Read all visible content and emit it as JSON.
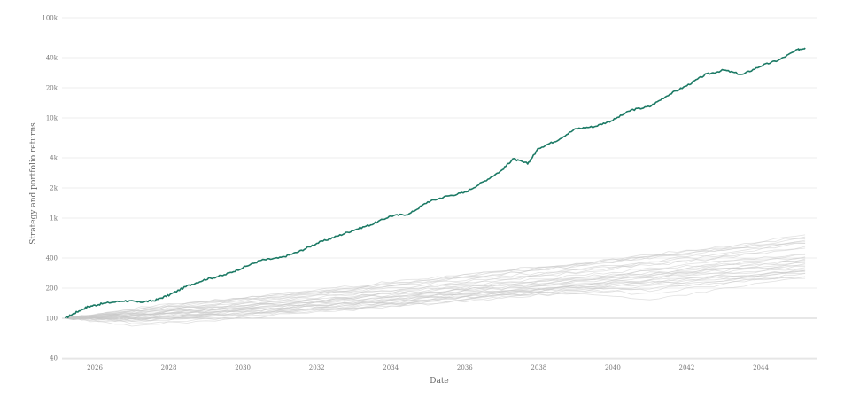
{
  "chart_data": {
    "type": "line",
    "xlabel": "Date",
    "ylabel": "Strategy and portfolio returns",
    "y_scale": "log",
    "ylim": [
      40,
      100000
    ],
    "xlim": [
      "2025-03-01",
      "2045-04-01"
    ],
    "y_ticks": [
      {
        "value": 40,
        "label": "40"
      },
      {
        "value": 100,
        "label": "100"
      },
      {
        "value": 200,
        "label": "200"
      },
      {
        "value": 400,
        "label": "400"
      },
      {
        "value": 1000,
        "label": "1k"
      },
      {
        "value": 2000,
        "label": "2k"
      },
      {
        "value": 4000,
        "label": "4k"
      },
      {
        "value": 10000,
        "label": "10k"
      },
      {
        "value": 20000,
        "label": "20k"
      },
      {
        "value": 40000,
        "label": "40k"
      },
      {
        "value": 100000,
        "label": "100k"
      }
    ],
    "x_ticks": [
      {
        "value": 2026,
        "label": "2026"
      },
      {
        "value": 2028,
        "label": "2028"
      },
      {
        "value": 2030,
        "label": "2030"
      },
      {
        "value": 2032,
        "label": "2032"
      },
      {
        "value": 2034,
        "label": "2034"
      },
      {
        "value": 2036,
        "label": "2036"
      },
      {
        "value": 2038,
        "label": "2038"
      },
      {
        "value": 2040,
        "label": "2040"
      },
      {
        "value": 2042,
        "label": "2042"
      },
      {
        "value": 2044,
        "label": "2044"
      }
    ],
    "grid": true,
    "highlight_color": "#1c7a65",
    "background_color": "#c9c9c9",
    "series": [
      {
        "role": "strategy",
        "x": [
          2025.2,
          2025.5,
          2025.8,
          2026.2,
          2026.8,
          2027.2,
          2027.6,
          2028.0,
          2028.5,
          2029.0,
          2029.5,
          2030.0,
          2030.5,
          2031.0,
          2031.5,
          2032.0,
          2032.5,
          2033.0,
          2033.5,
          2034.0,
          2034.5,
          2035.0,
          2035.5,
          2036.0,
          2036.5,
          2037.0,
          2037.3,
          2037.7,
          2038.0,
          2038.5,
          2039.0,
          2039.5,
          2040.0,
          2040.5,
          2041.0,
          2041.5,
          2042.0,
          2042.5,
          2043.0,
          2043.5,
          2044.0,
          2044.5,
          2045.0,
          2045.2
        ],
        "y": [
          100,
          115,
          130,
          140,
          150,
          145,
          150,
          170,
          210,
          245,
          270,
          320,
          380,
          400,
          460,
          560,
          650,
          760,
          870,
          1050,
          1100,
          1450,
          1650,
          1800,
          2300,
          3000,
          3900,
          3500,
          5000,
          6000,
          7800,
          8200,
          9500,
          12000,
          13000,
          17000,
          21000,
          27000,
          30000,
          27000,
          33000,
          38000,
          48000,
          50000
        ]
      },
      {
        "role": "portfolio",
        "x": [
          2025.2,
          2027,
          2029,
          2031,
          2033,
          2035,
          2037,
          2039,
          2041,
          2043,
          2045.2
        ],
        "y": [
          100,
          108,
          125,
          140,
          165,
          190,
          215,
          255,
          300,
          360,
          430
        ]
      },
      {
        "role": "portfolio",
        "x": [
          2025.2,
          2027,
          2029,
          2031,
          2033,
          2035,
          2037,
          2039,
          2041,
          2043,
          2045.2
        ],
        "y": [
          100,
          100,
          112,
          125,
          140,
          155,
          180,
          205,
          235,
          265,
          300
        ]
      },
      {
        "role": "portfolio",
        "x": [
          2025.2,
          2027,
          2029,
          2031,
          2033,
          2035,
          2037,
          2039,
          2041,
          2043,
          2045.2
        ],
        "y": [
          100,
          118,
          140,
          165,
          195,
          230,
          275,
          330,
          400,
          480,
          620
        ]
      },
      {
        "role": "portfolio",
        "x": [
          2025.2,
          2027,
          2029,
          2031,
          2033,
          2035,
          2037,
          2039,
          2041,
          2043,
          2045.2
        ],
        "y": [
          100,
          95,
          105,
          118,
          130,
          150,
          170,
          185,
          210,
          240,
          260
        ]
      },
      {
        "role": "portfolio",
        "x": [
          2025.2,
          2027,
          2029,
          2031,
          2033,
          2035,
          2037,
          2039,
          2041,
          2043,
          2045.2
        ],
        "y": [
          100,
          112,
          130,
          150,
          175,
          205,
          240,
          285,
          340,
          400,
          520
        ]
      },
      {
        "role": "portfolio",
        "x": [
          2025.2,
          2027,
          2029,
          2031,
          2033,
          2035,
          2037,
          2039,
          2041,
          2043,
          2045.2
        ],
        "y": [
          100,
          105,
          118,
          133,
          150,
          172,
          200,
          235,
          270,
          310,
          370
        ]
      },
      {
        "role": "portfolio",
        "x": [
          2025.2,
          2027,
          2029,
          2031,
          2033,
          2035,
          2037,
          2039,
          2041,
          2043,
          2045.2
        ],
        "y": [
          100,
          90,
          98,
          112,
          125,
          145,
          170,
          190,
          175,
          220,
          280
        ]
      },
      {
        "role": "portfolio",
        "x": [
          2025.2,
          2027,
          2029,
          2031,
          2033,
          2035,
          2037,
          2039,
          2041,
          2043,
          2045.2
        ],
        "y": [
          100,
          125,
          150,
          175,
          210,
          250,
          300,
          350,
          430,
          520,
          680
        ]
      },
      {
        "role": "portfolio",
        "x": [
          2025.2,
          2027,
          2029,
          2031,
          2033,
          2035,
          2037,
          2039,
          2041,
          2043,
          2045.2
        ],
        "y": [
          100,
          103,
          110,
          120,
          138,
          160,
          180,
          210,
          245,
          290,
          340
        ]
      },
      {
        "role": "portfolio",
        "x": [
          2025.2,
          2027,
          2029,
          2031,
          2033,
          2035,
          2037,
          2039,
          2041,
          2043,
          2045.2
        ],
        "y": [
          100,
          110,
          122,
          140,
          160,
          180,
          210,
          240,
          280,
          330,
          400
        ]
      },
      {
        "role": "portfolio",
        "x": [
          2025.2,
          2027,
          2029,
          2031,
          2033,
          2035,
          2037,
          2039,
          2041,
          2043,
          2045.2
        ],
        "y": [
          100,
          98,
          108,
          115,
          128,
          140,
          162,
          180,
          150,
          200,
          250
        ]
      },
      {
        "role": "portfolio",
        "x": [
          2025.2,
          2027,
          2029,
          2031,
          2033,
          2035,
          2037,
          2039,
          2041,
          2043,
          2045.2
        ],
        "y": [
          100,
          115,
          135,
          158,
          185,
          215,
          250,
          300,
          360,
          430,
          560
        ]
      },
      {
        "role": "portfolio",
        "x": [
          2025.2,
          2027,
          2029,
          2031,
          2033,
          2035,
          2037,
          2039,
          2041,
          2043,
          2045.2
        ],
        "y": [
          100,
          106,
          115,
          125,
          145,
          165,
          190,
          220,
          260,
          300,
          350
        ]
      },
      {
        "role": "portfolio",
        "x": [
          2025.2,
          2027,
          2029,
          2031,
          2033,
          2035,
          2037,
          2039,
          2041,
          2043,
          2045.2
        ],
        "y": [
          100,
          93,
          102,
          118,
          132,
          150,
          175,
          200,
          230,
          260,
          300
        ]
      },
      {
        "role": "portfolio",
        "x": [
          2025.2,
          2027,
          2029,
          2031,
          2033,
          2035,
          2037,
          2039,
          2041,
          2043,
          2045.2
        ],
        "y": [
          100,
          120,
          145,
          170,
          200,
          240,
          290,
          340,
          410,
          490,
          600
        ]
      },
      {
        "role": "portfolio",
        "x": [
          2025.2,
          2027,
          2029,
          2031,
          2033,
          2035,
          2037,
          2039,
          2041,
          2043,
          2045.2
        ],
        "y": [
          100,
          108,
          120,
          136,
          155,
          178,
          205,
          238,
          275,
          320,
          380
        ]
      },
      {
        "role": "portfolio",
        "x": [
          2025.2,
          2027,
          2029,
          2031,
          2033,
          2035,
          2037,
          2039,
          2041,
          2043,
          2045.2
        ],
        "y": [
          100,
          85,
          95,
          108,
          122,
          140,
          160,
          180,
          200,
          230,
          260
        ]
      },
      {
        "role": "portfolio",
        "x": [
          2025.2,
          2027,
          2029,
          2031,
          2033,
          2035,
          2037,
          2039,
          2041,
          2043,
          2045.2
        ],
        "y": [
          100,
          112,
          128,
          145,
          168,
          195,
          228,
          265,
          310,
          365,
          440
        ]
      },
      {
        "role": "portfolio",
        "x": [
          2025.2,
          2027,
          2029,
          2031,
          2033,
          2035,
          2037,
          2039,
          2041,
          2043,
          2045.2
        ],
        "y": [
          100,
          102,
          112,
          128,
          145,
          165,
          188,
          215,
          250,
          285,
          330
        ]
      },
      {
        "role": "portfolio",
        "x": [
          2025.2,
          2027,
          2029,
          2031,
          2033,
          2035,
          2037,
          2039,
          2041,
          2043,
          2045.2
        ],
        "y": [
          100,
          116,
          138,
          160,
          190,
          222,
          262,
          310,
          370,
          450,
          580
        ]
      },
      {
        "role": "portfolio",
        "x": [
          2025.2,
          2027,
          2029,
          2031,
          2033,
          2035,
          2037,
          2039,
          2041,
          2043,
          2045.2
        ],
        "y": [
          100,
          97,
          106,
          120,
          134,
          152,
          176,
          198,
          225,
          255,
          290
        ]
      },
      {
        "role": "portfolio",
        "x": [
          2025.2,
          2027,
          2029,
          2031,
          2033,
          2035,
          2037,
          2039,
          2041,
          2043,
          2045.2
        ],
        "y": [
          100,
          109,
          124,
          142,
          163,
          188,
          218,
          252,
          295,
          345,
          410
        ]
      },
      {
        "role": "portfolio",
        "x": [
          2025.2,
          2027,
          2029,
          2031,
          2033,
          2035,
          2037,
          2039,
          2041,
          2043,
          2045.2
        ],
        "y": [
          100,
          104,
          114,
          130,
          142,
          160,
          185,
          212,
          240,
          275,
          320
        ]
      },
      {
        "role": "portfolio",
        "x": [
          2025.2,
          2027,
          2029,
          2031,
          2033,
          2035,
          2037,
          2039,
          2041,
          2043,
          2045.2
        ],
        "y": [
          100,
          122,
          148,
          172,
          205,
          245,
          295,
          345,
          420,
          500,
          650
        ]
      },
      {
        "role": "portfolio",
        "x": [
          2025.2,
          2027,
          2029,
          2031,
          2033,
          2035,
          2037,
          2039,
          2041,
          2043,
          2045.2
        ],
        "y": [
          100,
          99,
          110,
          125,
          140,
          158,
          182,
          210,
          190,
          240,
          300
        ]
      },
      {
        "role": "portfolio",
        "x": [
          2025.2,
          2027,
          2029,
          2031,
          2033,
          2035,
          2037,
          2039,
          2041,
          2043,
          2045.2
        ],
        "y": [
          100,
          113,
          132,
          152,
          178,
          208,
          245,
          290,
          345,
          410,
          500
        ]
      },
      {
        "role": "portfolio",
        "x": [
          2025.2,
          2027,
          2029,
          2031,
          2033,
          2035,
          2037,
          2039,
          2041,
          2043,
          2045.2
        ],
        "y": [
          100,
          107,
          117,
          133,
          152,
          172,
          198,
          228,
          265,
          305,
          360
        ]
      },
      {
        "role": "portfolio",
        "x": [
          2025.2,
          2027,
          2029,
          2031,
          2033,
          2035,
          2037,
          2039,
          2041,
          2043,
          2045.2
        ],
        "y": [
          100,
          96,
          104,
          116,
          128,
          146,
          168,
          192,
          218,
          248,
          280
        ]
      },
      {
        "role": "portfolio",
        "x": [
          2025.2,
          2027,
          2029,
          2031,
          2033,
          2035,
          2037,
          2039,
          2041,
          2043,
          2045.2
        ],
        "y": [
          100,
          118,
          142,
          166,
          196,
          232,
          280,
          335,
          405,
          485,
          560
        ]
      },
      {
        "role": "portfolio",
        "x": [
          2025.2,
          2027,
          2029,
          2031,
          2033,
          2035,
          2037,
          2039,
          2041,
          2043,
          2045.2
        ],
        "y": [
          100,
          105,
          120,
          138,
          158,
          182,
          210,
          245,
          285,
          330,
          390
        ]
      }
    ]
  }
}
